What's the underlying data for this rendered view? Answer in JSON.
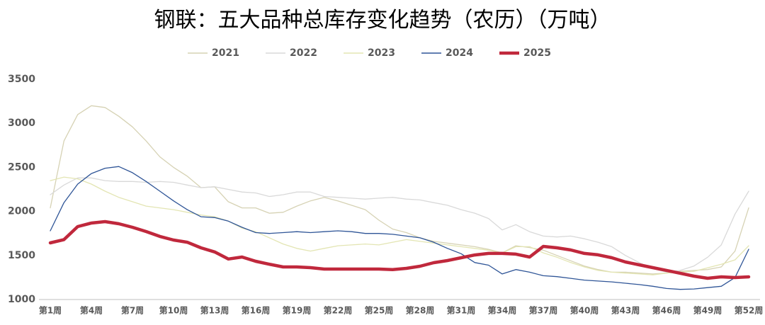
{
  "chart_data": {
    "type": "line",
    "title": "钢联：五大品种总库存变化趋势（农历）（万吨）",
    "categories": [
      "第1周",
      null,
      null,
      "第4周",
      null,
      null,
      "第7周",
      null,
      null,
      "第10周",
      null,
      null,
      "第13周",
      null,
      null,
      "第16周",
      null,
      null,
      "第19周",
      null,
      null,
      "第22周",
      null,
      null,
      "第25周",
      null,
      null,
      "第28周",
      null,
      null,
      "第31周",
      null,
      null,
      "第34周",
      null,
      null,
      "第37周",
      null,
      null,
      "第40周",
      null,
      null,
      "第43周",
      null,
      null,
      "第46周",
      null,
      null,
      "第49周",
      null,
      null,
      "第52周"
    ],
    "ylim": [
      1000,
      3500
    ],
    "yticks": [
      1000,
      1500,
      2000,
      2500,
      3000,
      3500
    ],
    "grid": false,
    "legend": "top",
    "series": [
      {
        "name": "2021",
        "color": "#d6d2b4",
        "width": 1.3,
        "values": [
          2040,
          2800,
          3100,
          3200,
          3180,
          3080,
          2960,
          2800,
          2620,
          2500,
          2400,
          2270,
          2280,
          2110,
          2040,
          2040,
          1980,
          1990,
          2060,
          2120,
          2160,
          2120,
          2070,
          2020,
          1900,
          1800,
          1760,
          1700,
          1660,
          1640,
          1620,
          1600,
          1570,
          1530,
          1610,
          1590,
          1560,
          1500,
          1440,
          1380,
          1340,
          1310,
          1310,
          1300,
          1290,
          1300,
          1320,
          1330,
          1340,
          1370,
          1550,
          2040
        ]
      },
      {
        "name": "2022",
        "color": "#d9d9d9",
        "width": 1.3,
        "values": [
          2190,
          2300,
          2380,
          2380,
          2350,
          2340,
          2340,
          2330,
          2340,
          2330,
          2300,
          2270,
          2280,
          2250,
          2220,
          2210,
          2170,
          2190,
          2220,
          2220,
          2170,
          2160,
          2150,
          2140,
          2150,
          2160,
          2140,
          2130,
          2100,
          2070,
          2020,
          1980,
          1920,
          1790,
          1850,
          1770,
          1720,
          1710,
          1720,
          1690,
          1650,
          1600,
          1500,
          1420,
          1350,
          1310,
          1330,
          1380,
          1480,
          1620,
          1970,
          2230
        ]
      },
      {
        "name": "2023",
        "color": "#e3e5b3",
        "width": 1.3,
        "values": [
          2350,
          2390,
          2370,
          2310,
          2230,
          2160,
          2110,
          2060,
          2040,
          2020,
          1990,
          1960,
          1940,
          1890,
          1810,
          1770,
          1700,
          1630,
          1580,
          1550,
          1580,
          1610,
          1620,
          1630,
          1620,
          1650,
          1680,
          1660,
          1640,
          1620,
          1600,
          1580,
          1560,
          1530,
          1600,
          1600,
          1530,
          1480,
          1420,
          1370,
          1330,
          1310,
          1300,
          1290,
          1280,
          1300,
          1310,
          1320,
          1360,
          1400,
          1450,
          1610
        ]
      },
      {
        "name": "2024",
        "color": "#2f5597",
        "width": 1.3,
        "values": [
          1780,
          2100,
          2310,
          2430,
          2490,
          2510,
          2440,
          2340,
          2230,
          2120,
          2020,
          1940,
          1930,
          1890,
          1820,
          1760,
          1750,
          1760,
          1770,
          1760,
          1770,
          1780,
          1770,
          1750,
          1750,
          1740,
          1720,
          1700,
          1650,
          1580,
          1520,
          1420,
          1390,
          1290,
          1340,
          1310,
          1270,
          1260,
          1240,
          1220,
          1210,
          1200,
          1185,
          1170,
          1150,
          1125,
          1115,
          1120,
          1135,
          1150,
          1250,
          1570
        ]
      },
      {
        "name": "2025",
        "color": "#c0283c",
        "width": 4.5,
        "values": [
          1643,
          1680,
          1828,
          1868,
          1884,
          1860,
          1820,
          1772,
          1716,
          1675,
          1650,
          1587,
          1540,
          1460,
          1482,
          1434,
          1400,
          1370,
          1370,
          1362,
          1346,
          1346,
          1346,
          1346,
          1346,
          1340,
          1354,
          1378,
          1418,
          1442,
          1474,
          1506,
          1523,
          1523,
          1515,
          1482,
          1603,
          1587,
          1563,
          1523,
          1507,
          1474,
          1426,
          1394,
          1362,
          1330,
          1298,
          1265,
          1241,
          1257,
          1249,
          1257
        ]
      }
    ]
  }
}
